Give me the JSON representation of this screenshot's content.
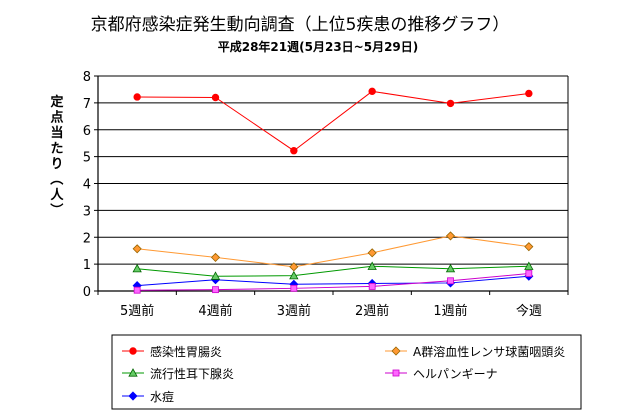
{
  "chart_data": {
    "type": "line",
    "title": "京都府感染症発生動向調査（上位5疾患の推移グラフ）",
    "subtitle": "平成28年21週(5月23日~5月29日)",
    "ylabel": "定点当たり（人）",
    "xlabel": "",
    "ylim": [
      0,
      8
    ],
    "yticks": [
      "0",
      "1",
      "2",
      "3",
      "4",
      "5",
      "6",
      "7",
      "8"
    ],
    "grid": true,
    "legend_position": "bottom",
    "categories": [
      "5週前",
      "4週前",
      "3週前",
      "2週前",
      "1週前",
      "今週"
    ],
    "series": [
      {
        "name": "感染性胃腸炎",
        "color": "#ff0000",
        "marker": "circle",
        "values": [
          7.22,
          7.2,
          5.22,
          7.43,
          6.98,
          7.35
        ]
      },
      {
        "name": "A群溶血性レンサ球菌咽頭炎",
        "color": "#ff9933",
        "marker": "diamond",
        "values": [
          1.57,
          1.25,
          0.9,
          1.42,
          2.05,
          1.65
        ]
      },
      {
        "name": "流行性耳下腺炎",
        "color": "#009900",
        "marker": "triangle",
        "values": [
          0.83,
          0.55,
          0.57,
          0.92,
          0.83,
          0.92
        ]
      },
      {
        "name": "ヘルパンギーナ",
        "color": "#cc00cc",
        "marker": "square",
        "values": [
          0.03,
          0.05,
          0.1,
          0.17,
          0.38,
          0.65
        ]
      },
      {
        "name": "水痘",
        "color": "#0000ff",
        "marker": "diamond",
        "values": [
          0.2,
          0.42,
          0.25,
          0.28,
          0.3,
          0.55
        ]
      }
    ]
  }
}
